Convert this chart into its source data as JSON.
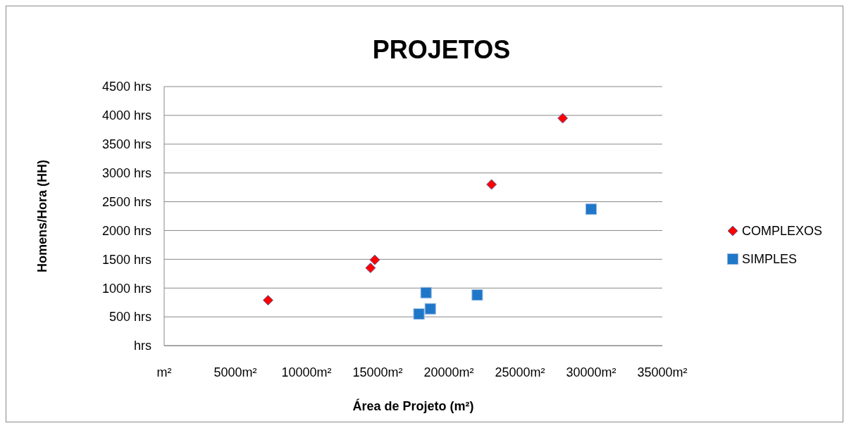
{
  "chart_data": {
    "type": "scatter",
    "title": "PROJETOS",
    "xlabel": "Área  de Projeto (m²)",
    "ylabel": "Homens/Hora (HH)",
    "series": [
      {
        "name": "COMPLEXOS",
        "color": "#ff0000",
        "marker": "diamond",
        "x": [
          7300,
          14500,
          14800,
          23000,
          28000
        ],
        "values": [
          790,
          1350,
          1490,
          2800,
          3950
        ]
      },
      {
        "name": "SIMPLES",
        "color": "#1f77c8",
        "marker": "square",
        "x": [
          30000,
          18400,
          18700,
          17900,
          22000
        ],
        "values": [
          2370,
          920,
          640,
          550,
          880
        ]
      }
    ],
    "xlim": [
      0,
      35000
    ],
    "ylim": [
      0,
      4500
    ],
    "xticks": [
      {
        "value": 0,
        "label": "m²"
      },
      {
        "value": 5000,
        "label": "5000m²"
      },
      {
        "value": 10000,
        "label": "10000m²"
      },
      {
        "value": 15000,
        "label": "15000m²"
      },
      {
        "value": 20000,
        "label": "20000m²"
      },
      {
        "value": 25000,
        "label": "25000m²"
      },
      {
        "value": 30000,
        "label": "30000m²"
      },
      {
        "value": 35000,
        "label": "35000m²"
      }
    ],
    "yticks": [
      {
        "value": 0,
        "label": "hrs"
      },
      {
        "value": 500,
        "label": "500 hrs"
      },
      {
        "value": 1000,
        "label": "1000 hrs"
      },
      {
        "value": 1500,
        "label": "1500 hrs"
      },
      {
        "value": 2000,
        "label": "2000 hrs"
      },
      {
        "value": 2500,
        "label": "2500 hrs"
      },
      {
        "value": 3000,
        "label": "3000 hrs"
      },
      {
        "value": 3500,
        "label": "3500 hrs"
      },
      {
        "value": 4000,
        "label": "4000 hrs"
      },
      {
        "value": 4500,
        "label": "4500 hrs"
      }
    ],
    "grid": "y",
    "legend": "right"
  }
}
